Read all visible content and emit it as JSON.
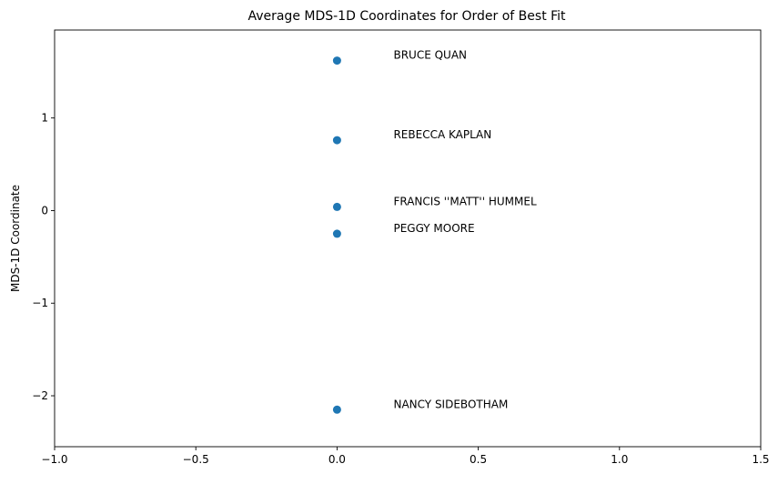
{
  "chart_data": {
    "type": "scatter",
    "title": "Average MDS-1D Coordinates for Order of Best Fit",
    "xlabel": "",
    "ylabel": "MDS-1D Coordinate",
    "xlim": [
      -1.0,
      1.5
    ],
    "ylim": [
      -2.55,
      1.95
    ],
    "xticks": [
      -1.0,
      -0.5,
      0.0,
      0.5,
      1.0,
      1.5
    ],
    "xtick_labels": [
      "−1.0",
      "−0.5",
      "0.0",
      "0.5",
      "1.0",
      "1.5"
    ],
    "yticks": [
      -2,
      -1,
      0,
      1
    ],
    "ytick_labels": [
      "−2",
      "−1",
      "0",
      "1"
    ],
    "grid": false,
    "legend": "none",
    "marker_color": "#1f77b4",
    "points": [
      {
        "x": 0.0,
        "y": 1.62
      },
      {
        "x": 0.0,
        "y": 0.76
      },
      {
        "x": 0.0,
        "y": 0.04
      },
      {
        "x": 0.0,
        "y": -0.25
      },
      {
        "x": 0.0,
        "y": -2.15
      }
    ],
    "annotations": [
      {
        "text": "BRUCE QUAN",
        "x": 0.2,
        "y": 1.64
      },
      {
        "text": "REBECCA KAPLAN",
        "x": 0.2,
        "y": 0.78
      },
      {
        "text": "FRANCIS ''MATT'' HUMMEL",
        "x": 0.2,
        "y": 0.06
      },
      {
        "text": "PEGGY MOORE",
        "x": 0.2,
        "y": -0.23
      },
      {
        "text": "NANCY SIDEBOTHAM",
        "x": 0.2,
        "y": -2.13
      }
    ]
  }
}
